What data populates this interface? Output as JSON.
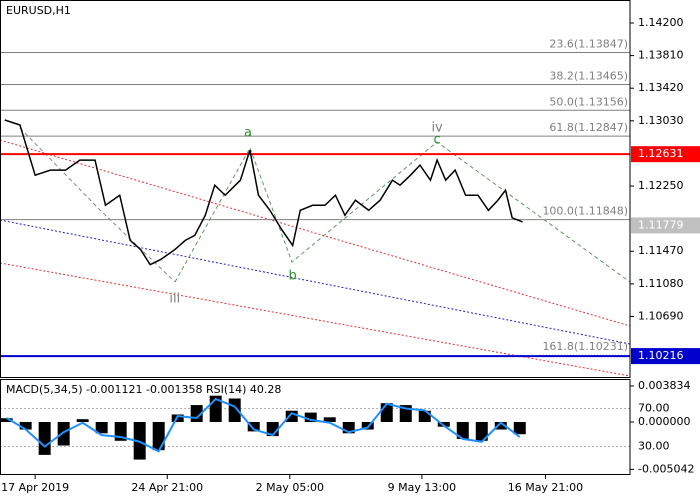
{
  "chart_data": [
    {
      "type": "line",
      "title": "EURUSD,H1",
      "x": [
        -32,
        -16,
        0,
        16,
        32,
        47,
        63,
        74,
        89,
        100,
        111,
        121,
        132,
        147,
        158,
        168,
        179,
        189,
        200,
        216,
        226,
        235,
        247,
        260,
        271,
        279,
        292,
        305,
        316,
        326,
        337,
        351,
        363,
        376,
        384,
        395,
        405,
        416,
        423,
        432,
        442,
        453,
        466,
        477,
        487,
        495,
        502,
        513
      ],
      "series": [
        {
          "color": "#000000",
          "values": [
            1.1304,
            1.1298,
            1.1238,
            1.1244,
            1.1244,
            1.1256,
            1.1256,
            1.1202,
            1.1214,
            1.116,
            1.1149,
            1.1131,
            1.1137,
            1.1149,
            1.116,
            1.1166,
            1.119,
            1.1226,
            1.1214,
            1.1232,
            1.1268,
            1.1214,
            1.1196,
            1.1172,
            1.1154,
            1.1196,
            1.1202,
            1.1202,
            1.1214,
            1.119,
            1.1208,
            1.1196,
            1.1208,
            1.1232,
            1.1226,
            1.1238,
            1.125,
            1.1232,
            1.1256,
            1.1232,
            1.1244,
            1.1214,
            1.1214,
            1.1196,
            1.1208,
            1.122,
            1.1187,
            1.1182
          ]
        }
      ],
      "xlim": [
        -37,
        626
      ],
      "xticks": [
        {
          "value": 0,
          "label": "17 Apr 2019"
        },
        {
          "value": 139,
          "label": "24 Apr 21:00"
        },
        {
          "value": 268,
          "label": "2 May 05:00"
        },
        {
          "value": 407,
          "label": "9 May 13:00"
        },
        {
          "value": 537,
          "label": "16 May 21:00"
        }
      ],
      "ylim": [
        1.09954,
        1.14475
      ],
      "yticks": [
        {
          "value": 1.142,
          "label": "1.14200"
        },
        {
          "value": 1.1381,
          "label": "1.13810"
        },
        {
          "value": 1.1342,
          "label": "1.13420"
        },
        {
          "value": 1.1303,
          "label": "1.13030"
        },
        {
          "value": 1.1225,
          "label": "1.12250"
        },
        {
          "value": 1.1147,
          "label": "1.11470"
        },
        {
          "value": 1.1108,
          "label": "1.11080"
        },
        {
          "value": 1.1069,
          "label": "1.10690"
        }
      ],
      "fib_levels": [
        {
          "value": 1.13847,
          "label": "23.6(1.13847)"
        },
        {
          "value": 1.13465,
          "label": "38.2(1.13465)"
        },
        {
          "value": 1.13156,
          "label": "50.0(1.13156)"
        },
        {
          "value": 1.12847,
          "label": "61.8(1.12847)"
        },
        {
          "value": 1.11848,
          "label": "100.0(1.11848)"
        }
      ],
      "extension": {
        "value": 1.10231,
        "label": "161.8(1.10231)"
      },
      "levels": [
        {
          "value": 1.12631,
          "color": "#ff0000"
        },
        {
          "value": 1.10216,
          "color": "#0000cd"
        }
      ],
      "current_price": 1.11779,
      "annotations": [
        {
          "text": "a",
          "x": 224,
          "y": 1.12884,
          "color": "#2e8b2e"
        },
        {
          "text": "b",
          "x": 271,
          "y": 1.11174,
          "color": "#2e8b2e"
        },
        {
          "text": "c",
          "x": 423,
          "y": 1.128,
          "color": "#2e8b2e"
        },
        {
          "text": "iv",
          "x": 423,
          "y": 1.12944,
          "color": "#808080"
        },
        {
          "text": "iii",
          "x": 147,
          "y": 1.109,
          "color": "#808080"
        }
      ]
    },
    {
      "type": "bar",
      "title": "MACD(5,34,5) -0.001121 -0.001358 RSI(14) 40.28",
      "x": [
        -30,
        -10,
        10,
        30,
        50,
        70,
        90,
        110,
        130,
        150,
        170,
        190,
        210,
        230,
        250,
        270,
        290,
        310,
        330,
        350,
        370,
        390,
        410,
        430,
        450,
        470,
        490,
        510
      ],
      "series": [
        {
          "color": "#000000",
          "values": [
            0.0004,
            -0.0008,
            -0.0035,
            -0.0025,
            0.0003,
            -0.0012,
            -0.002,
            -0.004,
            -0.003,
            0.0008,
            0.0018,
            0.0028,
            0.0025,
            -0.001,
            -0.0015,
            0.0012,
            0.001,
            0.0005,
            -0.0012,
            -0.0008,
            0.002,
            0.0018,
            0.0012,
            -0.0005,
            -0.0018,
            -0.002,
            -0.0008,
            -0.0013
          ]
        },
        {
          "type": "line",
          "axis": "y2",
          "color": "#1e90ff",
          "values": [
            60,
            48,
            30,
            45,
            55,
            42,
            40,
            35,
            25,
            62,
            60,
            80,
            72,
            48,
            42,
            65,
            58,
            55,
            45,
            50,
            75,
            70,
            68,
            52,
            38,
            35,
            55,
            40
          ]
        }
      ],
      "xlim": [
        -37,
        626
      ],
      "ylim": [
        -0.00564,
        0.00447
      ],
      "yticks": [
        0.003834,
        {
          "value": 0,
          "label": "0.000000"
        },
        -0.005042
      ],
      "y2lim": [
        0,
        100
      ],
      "y2ticks": [
        {
          "value": 70,
          "label": "70.00"
        },
        {
          "value": 30,
          "label": "30.00"
        }
      ]
    }
  ]
}
